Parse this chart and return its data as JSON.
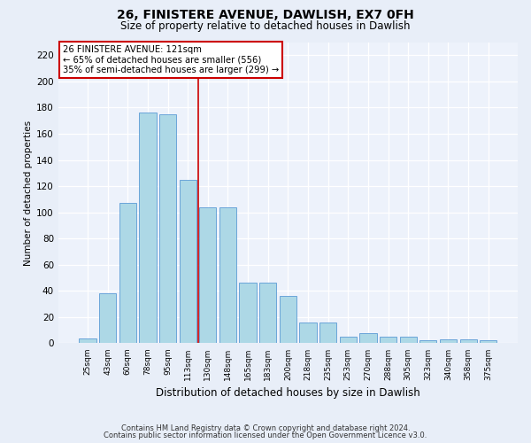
{
  "title": "26, FINISTERE AVENUE, DAWLISH, EX7 0FH",
  "subtitle": "Size of property relative to detached houses in Dawlish",
  "xlabel": "Distribution of detached houses by size in Dawlish",
  "ylabel": "Number of detached properties",
  "bar_values": [
    4,
    38,
    107,
    176,
    175,
    125,
    104,
    104,
    46,
    46,
    36,
    16,
    16,
    5,
    8,
    5,
    5,
    2,
    3,
    3,
    2
  ],
  "categories": [
    "25sqm",
    "43sqm",
    "60sqm",
    "78sqm",
    "95sqm",
    "113sqm",
    "130sqm",
    "148sqm",
    "165sqm",
    "183sqm",
    "200sqm",
    "218sqm",
    "235sqm",
    "253sqm",
    "270sqm",
    "288sqm",
    "305sqm",
    "323sqm",
    "340sqm",
    "358sqm",
    "375sqm"
  ],
  "bar_color": "#add8e6",
  "bar_edge_color": "#5b9bd5",
  "vline_color": "#cc0000",
  "annotation_line1": "26 FINISTERE AVENUE: 121sqm",
  "annotation_line2": "← 65% of detached houses are smaller (556)",
  "annotation_line3": "35% of semi-detached houses are larger (299) →",
  "annotation_box_color": "#ffffff",
  "annotation_box_edge": "#cc0000",
  "ylim": [
    0,
    230
  ],
  "yticks": [
    0,
    20,
    40,
    60,
    80,
    100,
    120,
    140,
    160,
    180,
    200,
    220
  ],
  "footer1": "Contains HM Land Registry data © Crown copyright and database right 2024.",
  "footer2": "Contains public sector information licensed under the Open Government Licence v3.0.",
  "bg_color": "#e8eef8",
  "plot_bg_color": "#edf2fb"
}
